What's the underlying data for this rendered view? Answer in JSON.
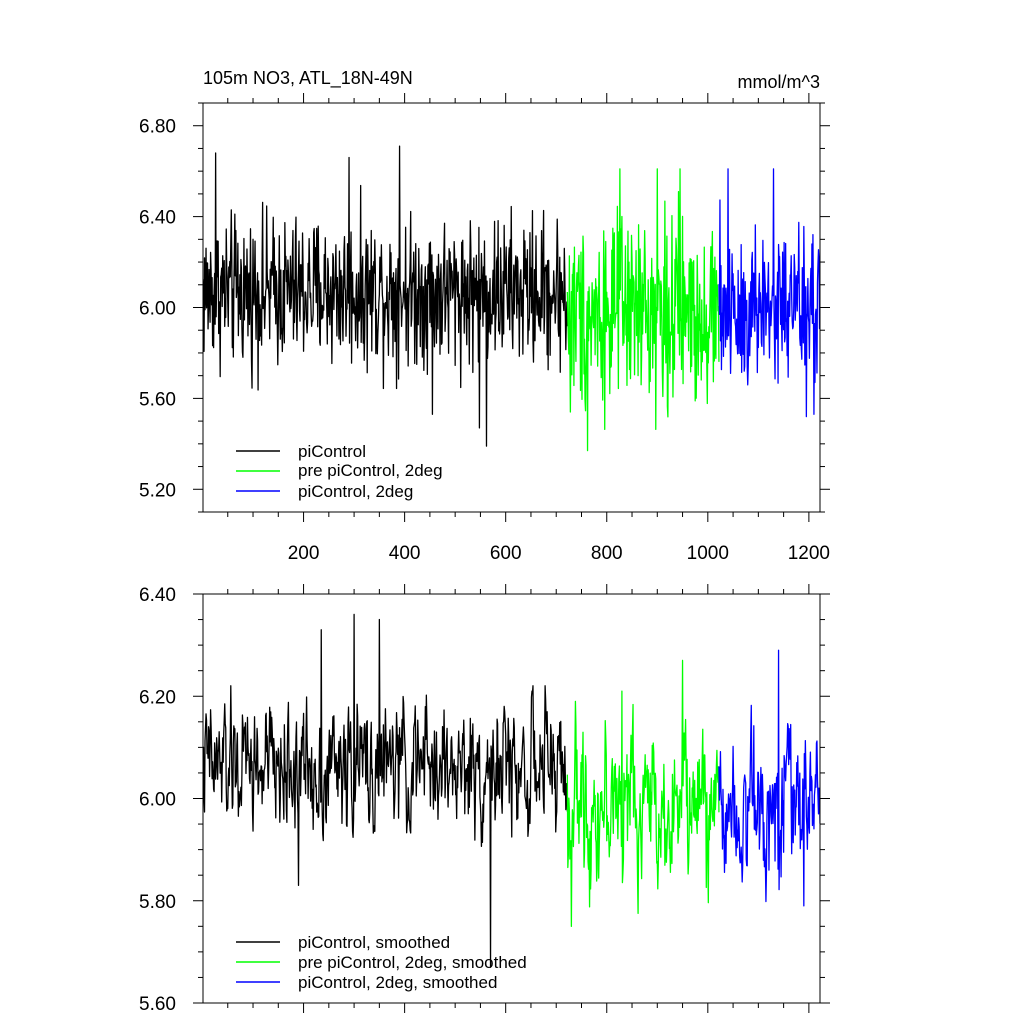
{
  "chart_data": [
    {
      "type": "line",
      "title": "105m NO3, ATL_18N-49N",
      "units": "mmol/m^3",
      "xlim": [
        1,
        1222
      ],
      "ylim": [
        5.1,
        6.9
      ],
      "xticks": [
        200,
        400,
        600,
        800,
        1000,
        1200
      ],
      "xtick_labels": [
        "200",
        "400",
        "600",
        "800",
        "1000",
        "1200"
      ],
      "yticks": [
        5.2,
        5.6,
        6.0,
        6.4,
        6.8
      ],
      "ytick_labels": [
        "5.20",
        "5.60",
        "6.00",
        "6.40",
        "6.80"
      ],
      "legend_position": "bottom-left",
      "series": [
        {
          "name": "piControl",
          "color": "#000000",
          "x_range": [
            1,
            722
          ],
          "mean": 6.07,
          "spread": 0.16,
          "extremes": [
            [
              26,
              6.68
            ],
            [
              290,
              6.66
            ],
            [
              390,
              6.71
            ],
            [
              548,
              5.47
            ],
            [
              562,
              5.39
            ],
            [
              455,
              5.53
            ]
          ]
        },
        {
          "name": "pre piControl, 2deg",
          "color": "#00ff00",
          "x_range": [
            722,
            1022
          ],
          "mean": 5.98,
          "spread": 0.2,
          "extremes": [
            [
              728,
              5.54
            ],
            [
              762,
              5.37
            ],
            [
              826,
              6.61
            ],
            [
              900,
              6.61
            ],
            [
              945,
              6.61
            ]
          ]
        },
        {
          "name": "piControl, 2deg",
          "color": "#0000ff",
          "x_range": [
            1022,
            1222
          ],
          "mean": 6.0,
          "spread": 0.19,
          "extremes": [
            [
              1040,
              6.61
            ],
            [
              1130,
              6.61
            ],
            [
              1195,
              5.52
            ],
            [
              1210,
              5.53
            ]
          ]
        }
      ]
    },
    {
      "type": "line",
      "xlim": [
        1,
        1222
      ],
      "ylim": [
        5.6,
        6.4
      ],
      "yticks": [
        5.6,
        5.8,
        6.0,
        6.2,
        6.4
      ],
      "ytick_labels": [
        "5.60",
        "5.80",
        "6.00",
        "6.20",
        "6.40"
      ],
      "legend_position": "bottom-left",
      "series": [
        {
          "name": "piControl, smoothed",
          "color": "#000000",
          "x_range": [
            1,
            722
          ],
          "mean": 6.06,
          "spread": 0.085,
          "extremes": [
            [
              235,
              6.33
            ],
            [
              300,
              6.36
            ],
            [
              350,
              6.35
            ],
            [
              190,
              5.83
            ],
            [
              570,
              5.67
            ]
          ]
        },
        {
          "name": "pre piControl, 2deg, smoothed",
          "color": "#00ff00",
          "x_range": [
            722,
            1022
          ],
          "mean": 5.99,
          "spread": 0.1,
          "extremes": [
            [
              730,
              5.75
            ],
            [
              830,
              6.21
            ],
            [
              950,
              6.27
            ]
          ]
        },
        {
          "name": "piControl, 2deg, smoothed",
          "color": "#0000ff",
          "x_range": [
            1022,
            1222
          ],
          "mean": 6.0,
          "spread": 0.1,
          "extremes": [
            [
              1140,
              6.29
            ],
            [
              1190,
              5.79
            ]
          ]
        }
      ]
    }
  ]
}
